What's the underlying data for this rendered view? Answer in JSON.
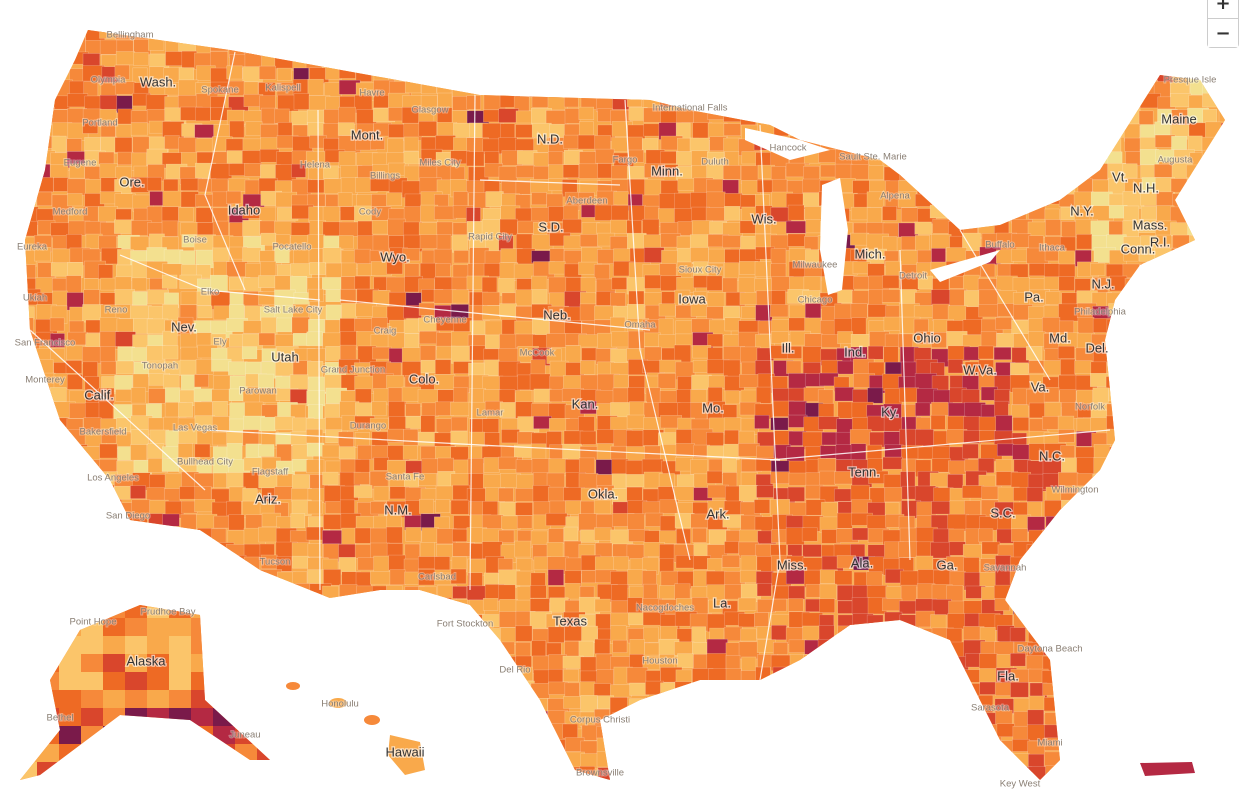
{
  "map": {
    "zoom_in": "+",
    "zoom_out": "−",
    "state_labels": [
      "Wash.",
      "Ore.",
      "Calif.",
      "Idaho",
      "Nev.",
      "Mont.",
      "Wyo.",
      "Utah",
      "Ariz.",
      "Colo.",
      "N.M.",
      "N.D.",
      "S.D.",
      "Neb.",
      "Kan.",
      "Okla.",
      "Texas",
      "Minn.",
      "Iowa",
      "Mo.",
      "Ark.",
      "La.",
      "Wis.",
      "Ill.",
      "Mich.",
      "Ind.",
      "Ohio",
      "Ky.",
      "Tenn.",
      "Miss.",
      "Ala.",
      "Ga.",
      "Fla.",
      "S.C.",
      "N.C.",
      "Va.",
      "W.Va.",
      "Pa.",
      "N.Y.",
      "Md.",
      "Del.",
      "N.J.",
      "Conn.",
      "R.I.",
      "Mass.",
      "Vt.",
      "N.H.",
      "Maine",
      "Alaska",
      "Hawaii"
    ],
    "city_labels": [
      "Bellingham",
      "Olympia",
      "Spokane",
      "Portland",
      "Eugene",
      "Medford",
      "Kalispell",
      "Havre",
      "Glasgow",
      "Helena",
      "Miles City",
      "Billings",
      "Cody",
      "Boise",
      "Pocatello",
      "Rapid City",
      "Aberdeen",
      "Fargo",
      "Duluth",
      "International Falls",
      "Hancock",
      "Sault Ste. Marie",
      "Alpena",
      "Eureka",
      "Ukiah",
      "Reno",
      "Elko",
      "Salt Lake City",
      "Ely",
      "Craig",
      "Cheyenne",
      "San Francisco",
      "Monterey",
      "Tonopah",
      "Grand Junction",
      "McCook",
      "Parowan",
      "Las Vegas",
      "Bakersfield",
      "Durango",
      "Los Angeles",
      "Bullhead City",
      "Flagstaff",
      "Santa Fe",
      "San Diego",
      "Tucson",
      "Carlsbad",
      "Lamar",
      "Sioux City",
      "Omaha",
      "Milwaukee",
      "Chicago",
      "Detroit",
      "Buffalo",
      "Ithaca",
      "Augusta",
      "Presque Isle",
      "Philadelphia",
      "Norfolk",
      "Wilmington",
      "Savannah",
      "Daytona Beach",
      "Miami",
      "Key West",
      "Sarasota",
      "Brownsville",
      "Corpus Christi",
      "Houston",
      "Del Rio",
      "Nacogdoches",
      "Fort Stockton",
      "Point Hope",
      "Prudhoe Bay",
      "Bethel",
      "Juneau",
      "Honolulu"
    ]
  }
}
